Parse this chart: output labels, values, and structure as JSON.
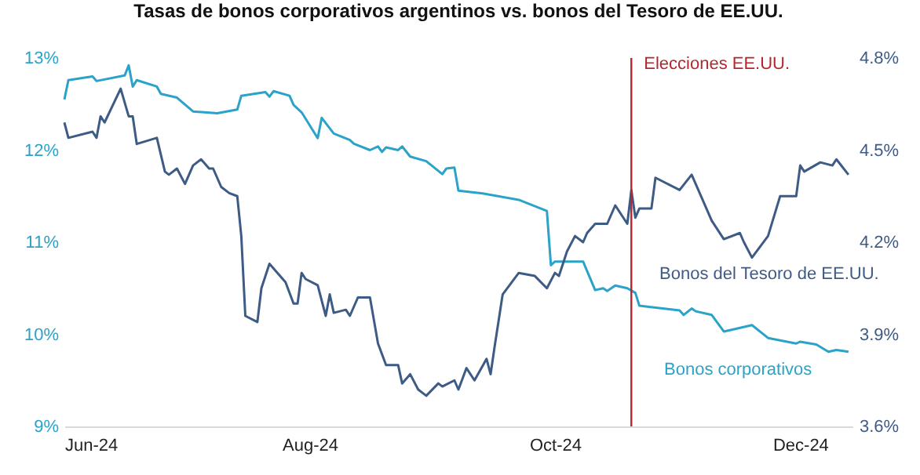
{
  "chart_data": {
    "type": "line",
    "title": "Tasas de bonos corporativos argentinos vs. bonos del Tesoro de EE.UU.",
    "xlim": [
      "2024-06-01",
      "2024-12-14"
    ],
    "xticks": [
      {
        "value": "2024-06-01",
        "label": "Jun-24"
      },
      {
        "value": "2024-08-01",
        "label": "Aug-24"
      },
      {
        "value": "2024-10-01",
        "label": "Oct-24"
      },
      {
        "value": "2024-12-01",
        "label": "Dec-24"
      }
    ],
    "ylim": [
      9,
      13
    ],
    "yticks": [
      {
        "value": 9,
        "label": "9%"
      },
      {
        "value": 10,
        "label": "10%"
      },
      {
        "value": 11,
        "label": "11%"
      },
      {
        "value": 12,
        "label": "12%"
      },
      {
        "value": 13,
        "label": "13%"
      }
    ],
    "y2lim": [
      3.6,
      4.8
    ],
    "y2ticks": [
      {
        "value": 3.6,
        "label": "3.6%"
      },
      {
        "value": 3.9,
        "label": "3.9%"
      },
      {
        "value": 4.2,
        "label": "4.2%"
      },
      {
        "value": 4.5,
        "label": "4.5%"
      },
      {
        "value": 4.8,
        "label": "4.8%"
      }
    ],
    "marker": "none",
    "line_style": "solid",
    "ref_lines": [
      {
        "axis": "x",
        "value": "2024-10-20",
        "label": "Elecciones EE.UU.",
        "color": "#b3282e"
      }
    ],
    "series": [
      {
        "name": "Bonos corporativos",
        "color": "#2ba3c9",
        "x": [
          "2024-06-01",
          "2024-06-02",
          "2024-06-08",
          "2024-06-09",
          "2024-06-16",
          "2024-06-17",
          "2024-06-18",
          "2024-06-19",
          "2024-06-24",
          "2024-06-25",
          "2024-06-29",
          "2024-07-03",
          "2024-07-09",
          "2024-07-14",
          "2024-07-15",
          "2024-07-21",
          "2024-07-22",
          "2024-07-23",
          "2024-07-27",
          "2024-07-28",
          "2024-07-30",
          "2024-08-03",
          "2024-08-04",
          "2024-08-07",
          "2024-08-11",
          "2024-08-12",
          "2024-08-16",
          "2024-08-18",
          "2024-08-19",
          "2024-08-20",
          "2024-08-23",
          "2024-08-24",
          "2024-08-26",
          "2024-08-30",
          "2024-09-03",
          "2024-09-04",
          "2024-09-06",
          "2024-09-07",
          "2024-09-13",
          "2024-09-22",
          "2024-09-29",
          "2024-09-30",
          "2024-10-01",
          "2024-10-08",
          "2024-10-11",
          "2024-10-13",
          "2024-10-14",
          "2024-10-16",
          "2024-10-19",
          "2024-10-21",
          "2024-10-22",
          "2024-10-24",
          "2024-11-01",
          "2024-11-02",
          "2024-11-04",
          "2024-11-05",
          "2024-11-09",
          "2024-11-12",
          "2024-11-15",
          "2024-11-19",
          "2024-11-23",
          "2024-11-30",
          "2024-12-01",
          "2024-12-05",
          "2024-12-08",
          "2024-12-10",
          "2024-12-13"
        ],
        "values": [
          12.55,
          12.76,
          12.8,
          12.75,
          12.81,
          12.92,
          12.69,
          12.76,
          12.69,
          12.61,
          12.57,
          12.42,
          12.4,
          12.44,
          12.59,
          12.63,
          12.58,
          12.64,
          12.59,
          12.49,
          12.41,
          12.13,
          12.35,
          12.18,
          12.11,
          12.07,
          12.0,
          12.04,
          11.98,
          12.03,
          12.0,
          12.04,
          11.93,
          11.88,
          11.74,
          11.8,
          11.81,
          11.56,
          11.53,
          11.46,
          11.34,
          10.75,
          10.79,
          10.79,
          10.48,
          10.5,
          10.47,
          10.53,
          10.5,
          10.45,
          10.31,
          10.3,
          10.26,
          10.21,
          10.28,
          10.25,
          10.21,
          10.03,
          10.06,
          10.1,
          9.96,
          9.9,
          9.92,
          9.89,
          9.81,
          9.83,
          9.81
        ]
      },
      {
        "name": "Bonos del Tesoro de EE.UU.",
        "color": "#3e5b86",
        "axis": "y2",
        "x": [
          "2024-06-01",
          "2024-06-02",
          "2024-06-08",
          "2024-06-09",
          "2024-06-10",
          "2024-06-11",
          "2024-06-15",
          "2024-06-17",
          "2024-06-18",
          "2024-06-19",
          "2024-06-24",
          "2024-06-26",
          "2024-06-27",
          "2024-06-29",
          "2024-07-01",
          "2024-07-03",
          "2024-07-05",
          "2024-07-07",
          "2024-07-08",
          "2024-07-10",
          "2024-07-12",
          "2024-07-14",
          "2024-07-15",
          "2024-07-16",
          "2024-07-19",
          "2024-07-20",
          "2024-07-22",
          "2024-07-26",
          "2024-07-28",
          "2024-07-29",
          "2024-07-30",
          "2024-07-31",
          "2024-08-03",
          "2024-08-05",
          "2024-08-06",
          "2024-08-07",
          "2024-08-10",
          "2024-08-11",
          "2024-08-13",
          "2024-08-16",
          "2024-08-18",
          "2024-08-20",
          "2024-08-23",
          "2024-08-24",
          "2024-08-26",
          "2024-08-28",
          "2024-08-30",
          "2024-09-02",
          "2024-09-03",
          "2024-09-06",
          "2024-09-07",
          "2024-09-09",
          "2024-09-11",
          "2024-09-14",
          "2024-09-15",
          "2024-09-16",
          "2024-09-18",
          "2024-09-22",
          "2024-09-26",
          "2024-09-29",
          "2024-10-01",
          "2024-10-02",
          "2024-10-04",
          "2024-10-06",
          "2024-10-08",
          "2024-10-09",
          "2024-10-11",
          "2024-10-14",
          "2024-10-16",
          "2024-10-19",
          "2024-10-20",
          "2024-10-21",
          "2024-10-22",
          "2024-10-25",
          "2024-10-26",
          "2024-11-01",
          "2024-11-04",
          "2024-11-08",
          "2024-11-09",
          "2024-11-12",
          "2024-11-16",
          "2024-11-17",
          "2024-11-19",
          "2024-11-23",
          "2024-11-26",
          "2024-11-30",
          "2024-12-01",
          "2024-12-02",
          "2024-12-06",
          "2024-12-09",
          "2024-12-10",
          "2024-12-13"
        ],
        "values": [
          4.59,
          4.54,
          4.56,
          4.54,
          4.61,
          4.59,
          4.7,
          4.61,
          4.61,
          4.52,
          4.54,
          4.43,
          4.42,
          4.44,
          4.39,
          4.45,
          4.47,
          4.44,
          4.44,
          4.38,
          4.36,
          4.35,
          4.22,
          3.96,
          3.94,
          4.05,
          4.13,
          4.07,
          4.0,
          4.0,
          4.1,
          4.08,
          4.06,
          3.96,
          4.03,
          3.97,
          3.98,
          3.96,
          4.02,
          4.02,
          3.87,
          3.8,
          3.8,
          3.74,
          3.77,
          3.72,
          3.7,
          3.74,
          3.73,
          3.75,
          3.72,
          3.79,
          3.75,
          3.82,
          3.77,
          3.86,
          4.03,
          4.1,
          4.09,
          4.05,
          4.1,
          4.09,
          4.17,
          4.22,
          4.2,
          4.23,
          4.26,
          4.26,
          4.32,
          4.26,
          4.37,
          4.28,
          4.31,
          4.31,
          4.41,
          4.37,
          4.42,
          4.3,
          4.27,
          4.21,
          4.23,
          4.2,
          4.15,
          4.22,
          4.35,
          4.35,
          4.45,
          4.43,
          4.46,
          4.45,
          4.47,
          4.42
        ]
      }
    ]
  }
}
